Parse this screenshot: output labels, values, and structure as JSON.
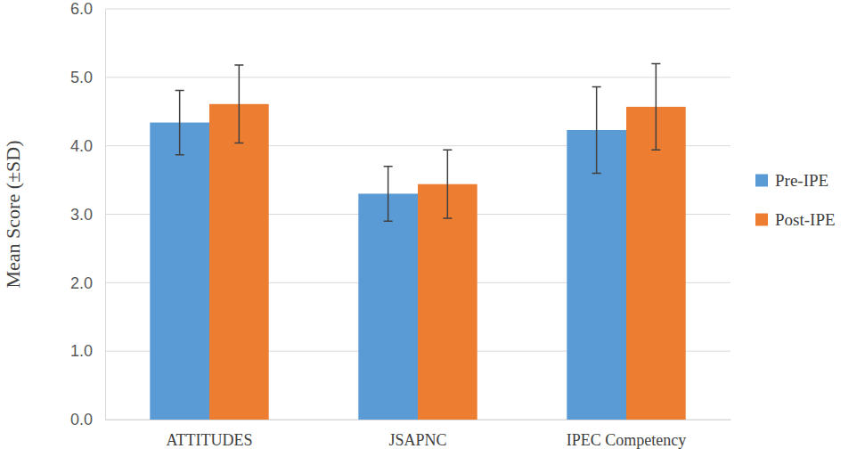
{
  "chart_data": {
    "type": "bar",
    "y_label": "Mean Score (±SD)",
    "categories": [
      "ATTITUDES",
      "JSAPNC",
      "IPEC Competency"
    ],
    "series": [
      {
        "name": "Pre-IPE",
        "color": "#5b9bd5",
        "values": [
          4.34,
          3.3,
          4.23
        ],
        "errors": [
          0.47,
          0.4,
          0.63
        ]
      },
      {
        "name": "Post-IPE",
        "color": "#ed7d31",
        "values": [
          4.61,
          3.44,
          4.57
        ],
        "errors": [
          0.57,
          0.5,
          0.63
        ]
      }
    ],
    "ylim": [
      0,
      6
    ],
    "yticks": [
      {
        "value": 0,
        "label": "0.0"
      },
      {
        "value": 1,
        "label": "1.0"
      },
      {
        "value": 2,
        "label": "2.0"
      },
      {
        "value": 3,
        "label": "3.0"
      },
      {
        "value": 4,
        "label": "4.0"
      },
      {
        "value": 5,
        "label": "5.0"
      },
      {
        "value": 6,
        "label": "6.0"
      }
    ],
    "grid": true,
    "legend": "right"
  }
}
